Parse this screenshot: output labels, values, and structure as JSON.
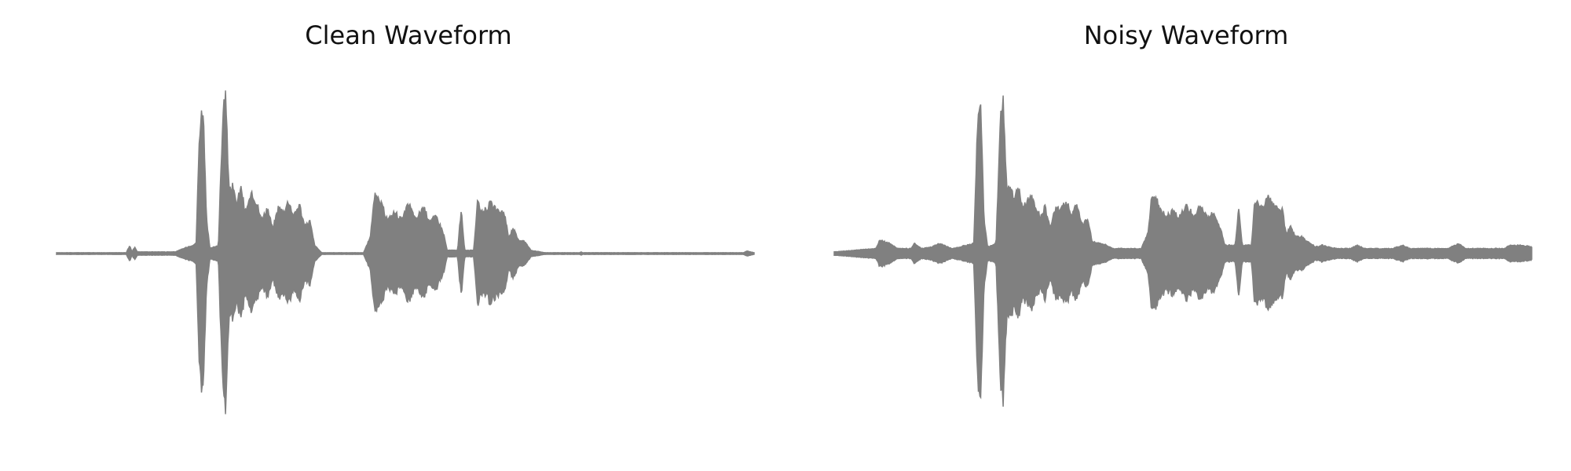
{
  "colors": {
    "waveform": "#808080",
    "background": "#ffffff",
    "title": "#111111"
  },
  "chart_data": [
    {
      "type": "line",
      "title": "Clean Waveform",
      "axes_visible": false,
      "grid": false,
      "x_range": [
        0,
        1
      ],
      "y_range": [
        -1,
        1
      ],
      "envelope": [
        [
          0.0,
          0.005
        ],
        [
          0.1,
          0.005
        ],
        [
          0.105,
          0.05
        ],
        [
          0.108,
          0.01
        ],
        [
          0.112,
          0.04
        ],
        [
          0.116,
          0.01
        ],
        [
          0.17,
          0.01
        ],
        [
          0.2,
          0.06
        ],
        [
          0.205,
          0.75
        ],
        [
          0.21,
          0.9
        ],
        [
          0.215,
          0.2
        ],
        [
          0.22,
          0.03
        ],
        [
          0.232,
          0.05
        ],
        [
          0.238,
          0.8
        ],
        [
          0.242,
          0.98
        ],
        [
          0.247,
          0.4
        ],
        [
          0.252,
          0.4
        ],
        [
          0.258,
          0.3
        ],
        [
          0.265,
          0.4
        ],
        [
          0.27,
          0.25
        ],
        [
          0.28,
          0.35
        ],
        [
          0.288,
          0.3
        ],
        [
          0.295,
          0.2
        ],
        [
          0.302,
          0.28
        ],
        [
          0.31,
          0.15
        ],
        [
          0.318,
          0.28
        ],
        [
          0.325,
          0.25
        ],
        [
          0.333,
          0.32
        ],
        [
          0.34,
          0.22
        ],
        [
          0.348,
          0.3
        ],
        [
          0.356,
          0.16
        ],
        [
          0.363,
          0.2
        ],
        [
          0.37,
          0.05
        ],
        [
          0.38,
          0.005
        ],
        [
          0.44,
          0.005
        ],
        [
          0.45,
          0.1
        ],
        [
          0.455,
          0.35
        ],
        [
          0.465,
          0.3
        ],
        [
          0.475,
          0.2
        ],
        [
          0.485,
          0.25
        ],
        [
          0.495,
          0.2
        ],
        [
          0.505,
          0.3
        ],
        [
          0.515,
          0.2
        ],
        [
          0.525,
          0.28
        ],
        [
          0.535,
          0.2
        ],
        [
          0.545,
          0.22
        ],
        [
          0.555,
          0.12
        ],
        [
          0.56,
          0.02
        ],
        [
          0.575,
          0.02
        ],
        [
          0.58,
          0.27
        ],
        [
          0.585,
          0.02
        ],
        [
          0.598,
          0.02
        ],
        [
          0.603,
          0.3
        ],
        [
          0.612,
          0.25
        ],
        [
          0.622,
          0.3
        ],
        [
          0.632,
          0.25
        ],
        [
          0.642,
          0.25
        ],
        [
          0.648,
          0.1
        ],
        [
          0.655,
          0.15
        ],
        [
          0.662,
          0.08
        ],
        [
          0.67,
          0.08
        ],
        [
          0.68,
          0.02
        ],
        [
          0.7,
          0.005
        ],
        [
          0.75,
          0.005
        ],
        [
          0.752,
          0.01
        ],
        [
          0.754,
          0.005
        ],
        [
          0.985,
          0.005
        ],
        [
          0.99,
          0.015
        ],
        [
          1.0,
          0.005
        ]
      ]
    },
    {
      "type": "line",
      "title": "Noisy Waveform",
      "axes_visible": false,
      "grid": false,
      "x_range": [
        0,
        1
      ],
      "y_range": [
        -1,
        1
      ],
      "envelope": [
        [
          0.0,
          0.01
        ],
        [
          0.03,
          0.02
        ],
        [
          0.06,
          0.03
        ],
        [
          0.065,
          0.08
        ],
        [
          0.08,
          0.06
        ],
        [
          0.09,
          0.03
        ],
        [
          0.11,
          0.03
        ],
        [
          0.115,
          0.06
        ],
        [
          0.125,
          0.03
        ],
        [
          0.14,
          0.04
        ],
        [
          0.15,
          0.06
        ],
        [
          0.17,
          0.03
        ],
        [
          0.2,
          0.06
        ],
        [
          0.205,
          0.75
        ],
        [
          0.21,
          0.88
        ],
        [
          0.215,
          0.2
        ],
        [
          0.22,
          0.04
        ],
        [
          0.232,
          0.06
        ],
        [
          0.238,
          0.8
        ],
        [
          0.242,
          0.98
        ],
        [
          0.247,
          0.42
        ],
        [
          0.252,
          0.4
        ],
        [
          0.258,
          0.32
        ],
        [
          0.265,
          0.4
        ],
        [
          0.27,
          0.26
        ],
        [
          0.28,
          0.35
        ],
        [
          0.288,
          0.3
        ],
        [
          0.295,
          0.22
        ],
        [
          0.302,
          0.28
        ],
        [
          0.31,
          0.16
        ],
        [
          0.318,
          0.28
        ],
        [
          0.325,
          0.26
        ],
        [
          0.333,
          0.32
        ],
        [
          0.34,
          0.22
        ],
        [
          0.348,
          0.3
        ],
        [
          0.356,
          0.17
        ],
        [
          0.363,
          0.21
        ],
        [
          0.37,
          0.07
        ],
        [
          0.385,
          0.06
        ],
        [
          0.4,
          0.03
        ],
        [
          0.44,
          0.03
        ],
        [
          0.45,
          0.12
        ],
        [
          0.455,
          0.35
        ],
        [
          0.465,
          0.3
        ],
        [
          0.475,
          0.22
        ],
        [
          0.485,
          0.25
        ],
        [
          0.495,
          0.22
        ],
        [
          0.505,
          0.3
        ],
        [
          0.515,
          0.22
        ],
        [
          0.525,
          0.28
        ],
        [
          0.535,
          0.22
        ],
        [
          0.545,
          0.24
        ],
        [
          0.555,
          0.14
        ],
        [
          0.56,
          0.05
        ],
        [
          0.575,
          0.05
        ],
        [
          0.58,
          0.28
        ],
        [
          0.585,
          0.05
        ],
        [
          0.598,
          0.05
        ],
        [
          0.603,
          0.32
        ],
        [
          0.612,
          0.27
        ],
        [
          0.622,
          0.33
        ],
        [
          0.632,
          0.27
        ],
        [
          0.642,
          0.27
        ],
        [
          0.648,
          0.12
        ],
        [
          0.655,
          0.16
        ],
        [
          0.662,
          0.1
        ],
        [
          0.67,
          0.1
        ],
        [
          0.69,
          0.04
        ],
        [
          0.7,
          0.05
        ],
        [
          0.72,
          0.03
        ],
        [
          0.74,
          0.03
        ],
        [
          0.75,
          0.05
        ],
        [
          0.76,
          0.03
        ],
        [
          0.8,
          0.03
        ],
        [
          0.815,
          0.05
        ],
        [
          0.825,
          0.03
        ],
        [
          0.88,
          0.03
        ],
        [
          0.895,
          0.06
        ],
        [
          0.905,
          0.03
        ],
        [
          0.96,
          0.03
        ],
        [
          0.97,
          0.05
        ],
        [
          0.985,
          0.05
        ],
        [
          1.0,
          0.04
        ]
      ]
    }
  ]
}
